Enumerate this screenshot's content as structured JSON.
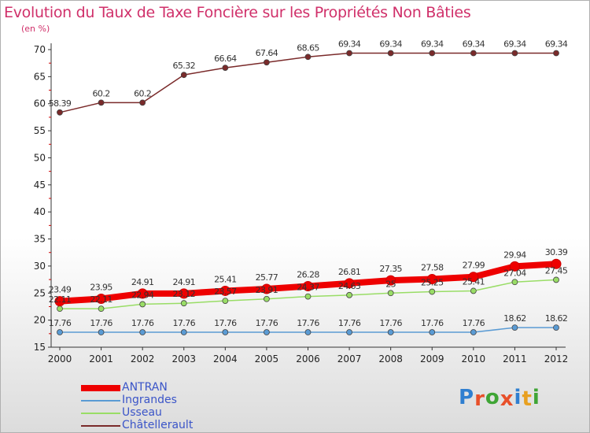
{
  "header": {
    "title": "Evolution du Taux de Taxe Foncière sur les Propriétés Non Bâties",
    "subtitle": "(en %)"
  },
  "logo": {
    "text": "Proxiti",
    "letter_colors": [
      "#2f7fd0",
      "#e8502a",
      "#3fa535",
      "#e8502a",
      "#2f7fd0",
      "#e8a020",
      "#3fa535"
    ]
  },
  "chart_data": {
    "type": "line",
    "title": "Evolution du Taux de Taxe Foncière sur les Propriétés Non Bâties",
    "ylabel": "(en %)",
    "xlabel": "",
    "x": [
      "2000",
      "2001",
      "2002",
      "2003",
      "2004",
      "2005",
      "2006",
      "2007",
      "2008",
      "2009",
      "2010",
      "2011",
      "2012"
    ],
    "ylim": [
      15,
      70
    ],
    "yticks": [
      15,
      20,
      25,
      30,
      35,
      40,
      45,
      50,
      55,
      60,
      65,
      70
    ],
    "grid": false,
    "legend_position": "bottom-left",
    "series": [
      {
        "name": "ANTRAN",
        "color": "#ee0000",
        "emphasis": "thick",
        "values": [
          23.49,
          23.95,
          24.91,
          24.91,
          25.41,
          25.77,
          26.28,
          26.81,
          27.35,
          27.58,
          27.99,
          29.94,
          30.39
        ],
        "labels": [
          "23.49",
          "23.95",
          "24.91",
          "24.91",
          "25.41",
          "25.77",
          "26.28",
          "26.81",
          "27.35",
          "27.58",
          "27.99",
          "29.94",
          "30.39"
        ]
      },
      {
        "name": "Ingrandes",
        "color": "#5a9bd4",
        "values": [
          17.76,
          17.76,
          17.76,
          17.76,
          17.76,
          17.76,
          17.76,
          17.76,
          17.76,
          17.76,
          17.76,
          18.62,
          18.62
        ],
        "labels": [
          "17.76",
          "17.76",
          "17.76",
          "17.76",
          "17.76",
          "17.76",
          "17.76",
          "17.76",
          "17.76",
          "17.76",
          "17.76",
          "18.62",
          "18.62"
        ]
      },
      {
        "name": "Usseau",
        "color": "#99dd66",
        "values": [
          22.11,
          22.11,
          22.94,
          23.12,
          23.57,
          23.91,
          24.37,
          24.63,
          25.0,
          25.25,
          25.41,
          27.04,
          27.45
        ],
        "labels": [
          "22.11",
          "22.11",
          "22.94",
          "23.12",
          "23.57",
          "23.91",
          "24.37",
          "24.63",
          "25",
          "25.25",
          "25.41",
          "27.04",
          "27.45"
        ]
      },
      {
        "name": "Châtellerault",
        "color": "#7a2a2a",
        "values": [
          58.39,
          60.2,
          60.2,
          65.32,
          66.64,
          67.64,
          68.65,
          69.34,
          69.34,
          69.34,
          69.34,
          69.34,
          69.34
        ],
        "labels": [
          "58.39",
          "60.2",
          "60.2",
          "65.32",
          "66.64",
          "67.64",
          "68.65",
          "69.34",
          "69.34",
          "69.34",
          "69.34",
          "69.34",
          "69.34"
        ]
      }
    ]
  }
}
